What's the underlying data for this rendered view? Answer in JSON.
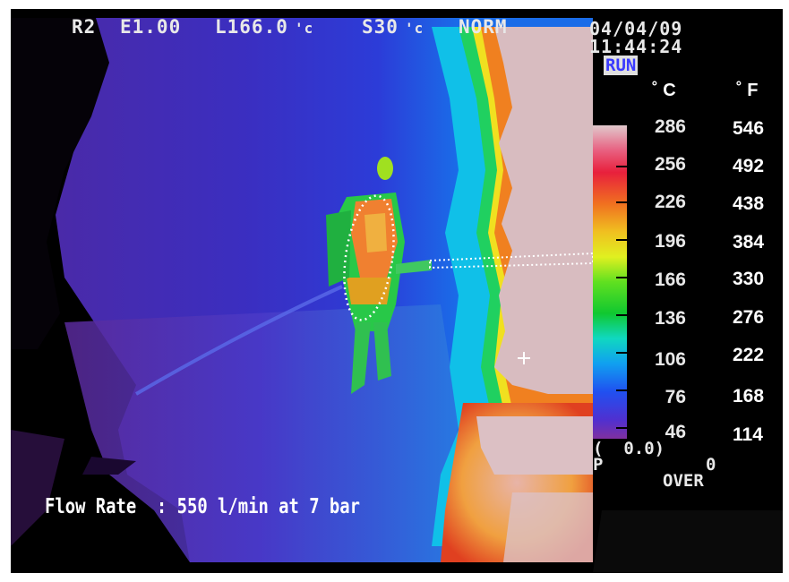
{
  "osd": {
    "range": "R2",
    "emissivity": "E1.00",
    "level": "L166.0",
    "level_unit": "'c",
    "span": "S30",
    "span_unit": "'c",
    "mode": "NORM",
    "date": "04/04/09",
    "time": "11:44:24",
    "status": "RUN",
    "ambient": "(  0.0)",
    "p_label": "P",
    "p_value": "0",
    "over": "OVER"
  },
  "scale": {
    "celsius_unit": "˚ C",
    "fahrenheit_unit": "˚ F",
    "celsius": [
      "286",
      "256",
      "226",
      "196",
      "166",
      "136",
      "106",
      "76",
      "46"
    ],
    "fahrenheit": [
      "546",
      "492",
      "438",
      "384",
      "330",
      "276",
      "222",
      "168",
      "114"
    ]
  },
  "caption": "Flow Rate  : 550 l/min at 7 bar",
  "colors": {
    "background_cool": "#3c28b4",
    "hot_surface": "#d4b8bc",
    "overlay_dotted": "#ffffff"
  }
}
